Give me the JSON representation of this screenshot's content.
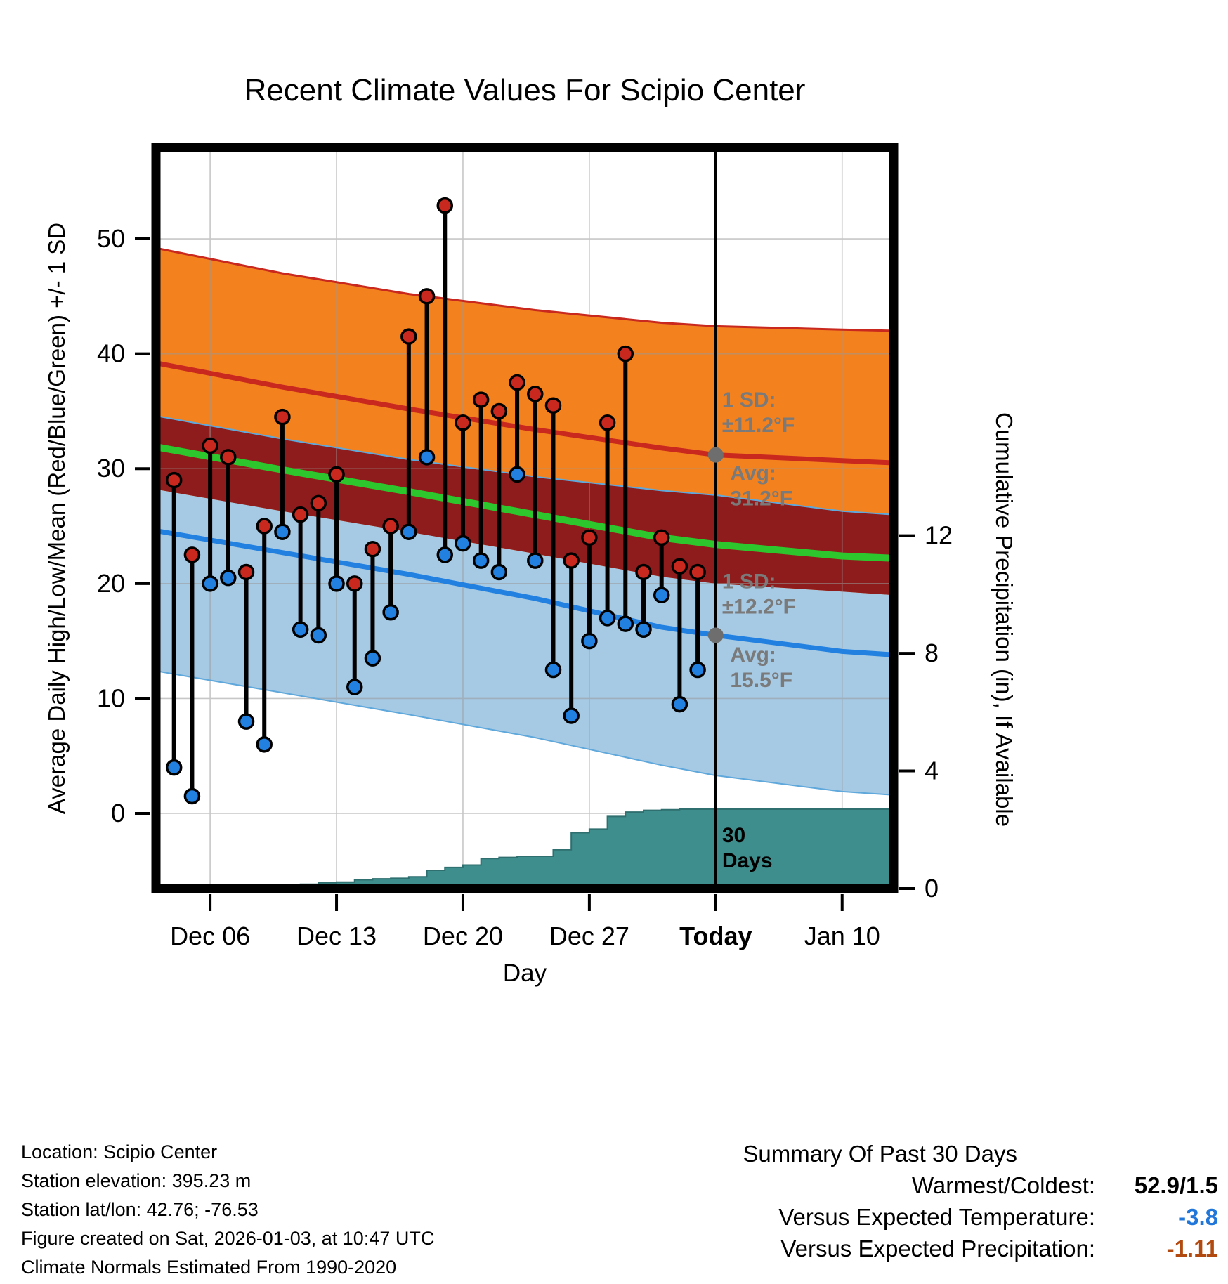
{
  "title": "Recent Climate Values For Scipio Center",
  "axis_labels": {
    "left": "Average Daily High/Low/Mean (Red/Blue/Green) +/- 1 SD",
    "right": "Cumulative Precipitation (in), If Available",
    "x": "Day"
  },
  "footer": {
    "lines": [
      "Location: Scipio Center",
      "Station elevation: 395.23 m",
      "Station lat/lon: 42.76; -76.53",
      "Figure created on Sat, 2026-01-03, at 10:47 UTC",
      "Climate Normals Estimated From 1990-2020"
    ]
  },
  "summary": {
    "heading": "Summary Of Past 30 Days",
    "rows": [
      {
        "label": "Warmest/Coldest:",
        "value": "52.9/1.5",
        "color": "#000000"
      },
      {
        "label": "Versus Expected Temperature:",
        "value": "-3.8",
        "color": "#2176D9"
      },
      {
        "label": "Versus Expected Precipitation:",
        "value": "-1.11",
        "color": "#B24A0F"
      }
    ]
  },
  "chart_data": {
    "type": "line",
    "title": "Recent Climate Values For Scipio Center",
    "xlabel": "Day",
    "ylabel_left": "Average Daily High/Low/Mean (Red/Blue/Green) +/- 1 SD",
    "ylabel_right": "Cumulative Precipitation (in), If Available",
    "x_range_days": [
      0,
      40.85
    ],
    "x_day0_date": "Dec 03",
    "today_day": 31,
    "x_ticks": [
      {
        "day": 3,
        "label": "Dec 06",
        "bold": false
      },
      {
        "day": 10,
        "label": "Dec 13",
        "bold": false
      },
      {
        "day": 17,
        "label": "Dec 20",
        "bold": false
      },
      {
        "day": 24,
        "label": "Dec 27",
        "bold": false
      },
      {
        "day": 31,
        "label": "Today",
        "bold": true
      },
      {
        "day": 38,
        "label": "Jan 10",
        "bold": false
      }
    ],
    "temp_axis": {
      "range": [
        -6.54,
        57.95
      ],
      "ticks": [
        0,
        10,
        20,
        30,
        40,
        50
      ]
    },
    "precip_axis": {
      "range": [
        0,
        25.2
      ],
      "ticks": [
        0,
        4,
        8,
        12
      ]
    },
    "daily": {
      "dates": [
        "Dec 04",
        "Dec 05",
        "Dec 06",
        "Dec 07",
        "Dec 08",
        "Dec 09",
        "Dec 10",
        "Dec 11",
        "Dec 12",
        "Dec 13",
        "Dec 14",
        "Dec 15",
        "Dec 16",
        "Dec 17",
        "Dec 18",
        "Dec 19",
        "Dec 20",
        "Dec 21",
        "Dec 22",
        "Dec 23",
        "Dec 24",
        "Dec 25",
        "Dec 26",
        "Dec 27",
        "Dec 28",
        "Dec 29",
        "Dec 30",
        "Dec 31",
        "Jan 01",
        "Jan 02"
      ],
      "days": [
        1,
        2,
        3,
        4,
        5,
        6,
        7,
        8,
        9,
        10,
        11,
        12,
        13,
        14,
        15,
        16,
        17,
        18,
        19,
        20,
        21,
        22,
        23,
        24,
        25,
        26,
        27,
        28,
        29,
        30
      ],
      "high": [
        29.0,
        22.5,
        32.0,
        31.0,
        21.0,
        25.0,
        34.5,
        26.0,
        27.0,
        29.5,
        20.0,
        23.0,
        25.0,
        41.5,
        45.0,
        52.9,
        34.0,
        36.0,
        35.0,
        37.5,
        36.5,
        35.5,
        22.0,
        24.0,
        34.0,
        40.0,
        21.0,
        24.0,
        21.5,
        21.0
      ],
      "low": [
        4.0,
        1.5,
        20.0,
        20.5,
        8.0,
        6.0,
        24.5,
        16.0,
        15.5,
        20.0,
        11.0,
        13.5,
        17.5,
        24.5,
        31.0,
        22.5,
        23.5,
        22.0,
        21.0,
        29.5,
        22.0,
        12.5,
        8.5,
        15.0,
        17.0,
        16.5,
        16.0,
        19.0,
        9.5,
        12.5
      ]
    },
    "normals": {
      "days": [
        0,
        7,
        14,
        21,
        28,
        31,
        38,
        40.85
      ],
      "high_upper": [
        49.2,
        47.0,
        45.2,
        43.8,
        42.7,
        42.4,
        42.1,
        42.0
      ],
      "high_mean": [
        39.2,
        37.1,
        35.2,
        33.4,
        31.8,
        31.2,
        30.7,
        30.5
      ],
      "high_lower": [
        28.2,
        26.3,
        24.5,
        22.6,
        20.6,
        20.0,
        19.3,
        19.0
      ],
      "low_upper": [
        34.6,
        32.6,
        30.8,
        29.3,
        28.1,
        27.7,
        26.3,
        26.0
      ],
      "low_mean": [
        24.6,
        22.7,
        20.8,
        18.7,
        16.2,
        15.5,
        14.1,
        13.8
      ],
      "low_lower": [
        12.4,
        10.5,
        8.6,
        6.6,
        4.2,
        3.3,
        1.9,
        1.6
      ],
      "mean": [
        31.9,
        29.9,
        28.0,
        26.0,
        24.0,
        23.4,
        22.4,
        22.2
      ]
    },
    "stats": {
      "high_avg": 31.2,
      "low_avg": 15.5,
      "high_sd": 11.2,
      "low_sd": 12.2
    },
    "annotations": [
      {
        "x_day": 31.35,
        "temp": 35.4,
        "lines": [
          "1 SD:",
          "±11.2°F"
        ],
        "color": "#7A7A7A"
      },
      {
        "x_day": 31.8,
        "temp": 29.0,
        "lines": [
          "Avg:",
          "31.2°F"
        ],
        "color": "#7A7A7A"
      },
      {
        "x_day": 31.35,
        "temp": 19.6,
        "lines": [
          "1 SD:",
          "±12.2°F"
        ],
        "color": "#7A7A7A"
      },
      {
        "x_day": 31.8,
        "temp": 13.2,
        "lines": [
          "Avg:",
          "15.5°F"
        ],
        "color": "#7A7A7A"
      },
      {
        "x_day": 31.35,
        "temp": -2.5,
        "lines": [
          "30",
          "Days"
        ],
        "color": "#000000"
      }
    ],
    "precip_steps": [
      [
        0,
        0
      ],
      [
        4.5,
        0.02
      ],
      [
        6,
        0.06
      ],
      [
        7,
        0.1
      ],
      [
        8,
        0.15
      ],
      [
        9,
        0.2
      ],
      [
        10,
        0.22
      ],
      [
        11,
        0.3
      ],
      [
        12,
        0.33
      ],
      [
        13,
        0.35
      ],
      [
        14,
        0.4
      ],
      [
        15,
        0.62
      ],
      [
        16,
        0.72
      ],
      [
        17,
        0.8
      ],
      [
        18,
        1.02
      ],
      [
        19,
        1.06
      ],
      [
        20,
        1.1
      ],
      [
        22,
        1.32
      ],
      [
        23,
        1.9
      ],
      [
        24,
        2.02
      ],
      [
        25,
        2.45
      ],
      [
        26,
        2.6
      ],
      [
        27,
        2.66
      ],
      [
        28,
        2.68
      ],
      [
        29,
        2.7
      ]
    ],
    "precip_final": 2.7,
    "colors": {
      "high_band": "#F3811E",
      "overlap_band": "#8E1C1C",
      "low_band": "#A6C9E4",
      "high_line": "#C8281E",
      "low_line": "#2180E0",
      "low_edge": "#5FA8DC",
      "mean_line": "#2DC62D",
      "precip_fill": "#3F8E8E",
      "precip_edge": "#2F6F6F",
      "grid": "#9A9A9A",
      "annotation": "#7A7A7A",
      "bar": "#000000",
      "avg_marker": "#6E6E6E"
    }
  }
}
